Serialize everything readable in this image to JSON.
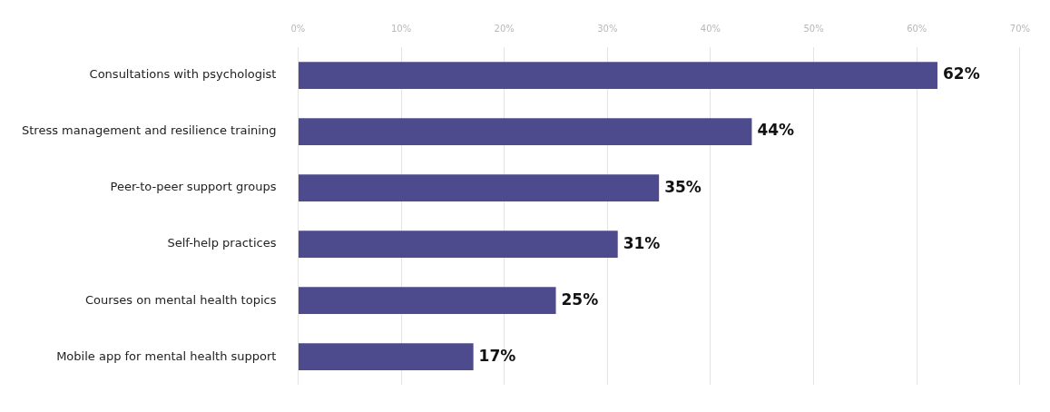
{
  "chart_data": {
    "type": "bar",
    "orientation": "horizontal",
    "categories": [
      "Consultations with psychologist",
      "Stress management and resilience training",
      "Peer-to-peer support groups",
      "Self-help practices",
      "Courses on mental health topics",
      "Mobile app for mental health support"
    ],
    "values": [
      62,
      44,
      35,
      31,
      25,
      17
    ],
    "color": "#4e4a8e",
    "xlim": [
      0,
      70
    ],
    "xticks": [
      {
        "value": 0,
        "label": "0%"
      },
      {
        "value": 10,
        "label": "10%"
      },
      {
        "value": 20,
        "label": "20%"
      },
      {
        "value": 30,
        "label": "30%"
      },
      {
        "value": 40,
        "label": "40%"
      },
      {
        "value": 50,
        "label": "50%"
      },
      {
        "value": 60,
        "label": "60%"
      },
      {
        "value": 70,
        "label": "70%"
      }
    ],
    "value_labels": [
      "62%",
      "44%",
      "35%",
      "31%",
      "25%",
      "17%"
    ],
    "grid": "x"
  }
}
